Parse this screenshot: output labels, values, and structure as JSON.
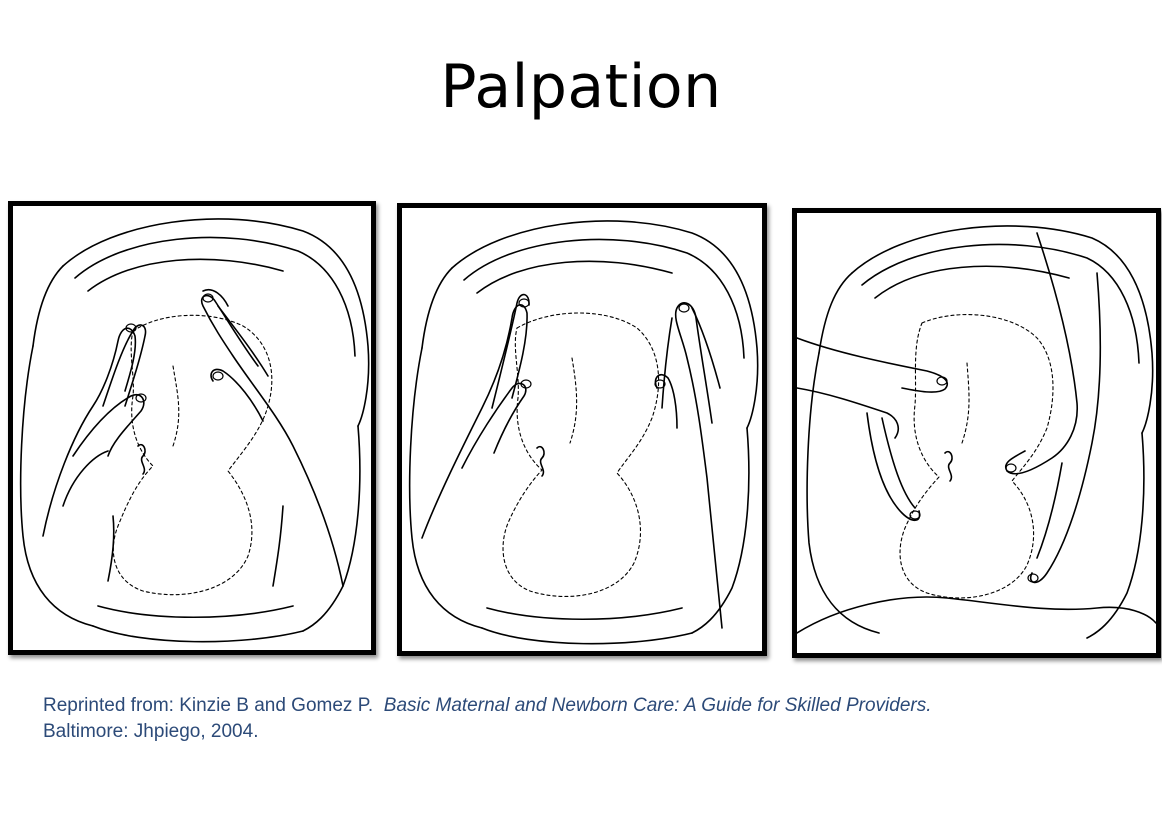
{
  "slide": {
    "title": "Palpation"
  },
  "figure": {
    "panels": [
      {
        "illustration": "abdominal-palpation-fundal-icon"
      },
      {
        "illustration": "abdominal-palpation-lateral-icon"
      },
      {
        "illustration": "abdominal-palpation-pelvic-grip-icon"
      }
    ]
  },
  "citation": {
    "prefix": "Reprinted from: Kinzie B and Gomez P.",
    "book_title": "Basic Maternal and Newborn Care: A Guide for Skilled Providers.",
    "publisher_line": "Baltimore: Jhpiego, 2004."
  }
}
